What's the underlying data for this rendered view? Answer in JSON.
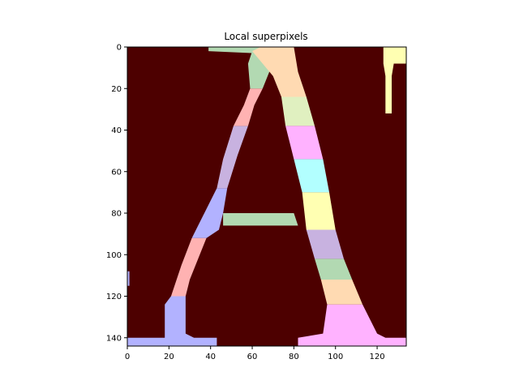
{
  "chart_data": {
    "type": "heatmap",
    "title": "Local superpixels",
    "xlabel": "",
    "ylabel": "",
    "xlim": [
      0,
      134
    ],
    "ylim": [
      144,
      0
    ],
    "xticks": [
      0,
      20,
      40,
      60,
      80,
      100,
      120
    ],
    "yticks": [
      0,
      20,
      40,
      60,
      80,
      100,
      120,
      140
    ],
    "grid": false,
    "background_color": "#4d0000",
    "segments": [
      {
        "color": "#b2b2ff",
        "polygon": [
          [
            0,
            140
          ],
          [
            18,
            140
          ],
          [
            18,
            124
          ],
          [
            21,
            120
          ],
          [
            28,
            120
          ],
          [
            28,
            138
          ],
          [
            32,
            140
          ],
          [
            43,
            140
          ],
          [
            43,
            144
          ],
          [
            0,
            144
          ]
        ]
      },
      {
        "color": "#ffb2b2",
        "polygon": [
          [
            21,
            120
          ],
          [
            28,
            120
          ],
          [
            30,
            112
          ],
          [
            38,
            92
          ],
          [
            31,
            92
          ],
          [
            26,
            105
          ]
        ]
      },
      {
        "color": "#b2b2ff",
        "polygon": [
          [
            38,
            92
          ],
          [
            31,
            92
          ],
          [
            36,
            82
          ],
          [
            43,
            68
          ],
          [
            48,
            68
          ],
          [
            46,
            80
          ],
          [
            44,
            88
          ]
        ]
      },
      {
        "color": "#b2d9b2",
        "polygon": [
          [
            46,
            80
          ],
          [
            60,
            80
          ],
          [
            80,
            80
          ],
          [
            82,
            86
          ],
          [
            62,
            86
          ],
          [
            46,
            86
          ]
        ]
      },
      {
        "color": "#c8b2e0",
        "polygon": [
          [
            43,
            68
          ],
          [
            48,
            68
          ],
          [
            53,
            52
          ],
          [
            58,
            38
          ],
          [
            51,
            38
          ],
          [
            46,
            54
          ]
        ]
      },
      {
        "color": "#ffb2b2",
        "polygon": [
          [
            51,
            38
          ],
          [
            58,
            38
          ],
          [
            61,
            28
          ],
          [
            65,
            20
          ],
          [
            59,
            20
          ],
          [
            56,
            28
          ]
        ]
      },
      {
        "color": "#b2d9b2",
        "polygon": [
          [
            59,
            20
          ],
          [
            65,
            20
          ],
          [
            69,
            10
          ],
          [
            74,
            2
          ],
          [
            72,
            0
          ],
          [
            64,
            0
          ],
          [
            60,
            2
          ],
          [
            58,
            8
          ]
        ]
      },
      {
        "color": "#b2d9b2",
        "polygon": [
          [
            39,
            0
          ],
          [
            72,
            0
          ],
          [
            74,
            2
          ],
          [
            62,
            3
          ],
          [
            39,
            2
          ]
        ]
      },
      {
        "color": "#ffdab2",
        "polygon": [
          [
            60,
            2
          ],
          [
            64,
            0
          ],
          [
            80,
            0
          ],
          [
            82,
            12
          ],
          [
            86,
            24
          ],
          [
            74,
            24
          ],
          [
            70,
            14
          ]
        ]
      },
      {
        "color": "#e0f0c0",
        "polygon": [
          [
            74,
            24
          ],
          [
            86,
            24
          ],
          [
            90,
            38
          ],
          [
            76,
            38
          ]
        ]
      },
      {
        "color": "#ffb2ff",
        "polygon": [
          [
            76,
            38
          ],
          [
            90,
            38
          ],
          [
            94,
            54
          ],
          [
            80,
            54
          ]
        ]
      },
      {
        "color": "#b2ffff",
        "polygon": [
          [
            80,
            54
          ],
          [
            94,
            54
          ],
          [
            97,
            70
          ],
          [
            84,
            70
          ]
        ]
      },
      {
        "color": "#ffffb2",
        "polygon": [
          [
            84,
            70
          ],
          [
            97,
            70
          ],
          [
            100,
            88
          ],
          [
            86,
            88
          ]
        ]
      },
      {
        "color": "#c8b2e0",
        "polygon": [
          [
            86,
            88
          ],
          [
            100,
            88
          ],
          [
            104,
            102
          ],
          [
            90,
            102
          ]
        ]
      },
      {
        "color": "#b2d9b2",
        "polygon": [
          [
            90,
            102
          ],
          [
            104,
            102
          ],
          [
            108,
            112
          ],
          [
            93,
            112
          ]
        ]
      },
      {
        "color": "#ffdab2",
        "polygon": [
          [
            93,
            112
          ],
          [
            108,
            112
          ],
          [
            113,
            124
          ],
          [
            96,
            124
          ]
        ]
      },
      {
        "color": "#ffb2ff",
        "polygon": [
          [
            96,
            124
          ],
          [
            113,
            124
          ],
          [
            116,
            130
          ],
          [
            120,
            138
          ],
          [
            124,
            140
          ],
          [
            134,
            140
          ],
          [
            134,
            144
          ],
          [
            82,
            144
          ],
          [
            82,
            140
          ],
          [
            94,
            138
          ]
        ]
      },
      {
        "color": "#ffffb2",
        "polygon": [
          [
            123,
            0
          ],
          [
            134,
            0
          ],
          [
            134,
            8
          ],
          [
            128,
            8
          ],
          [
            127,
            14
          ],
          [
            127,
            32
          ],
          [
            124,
            32
          ],
          [
            124,
            14
          ],
          [
            123,
            8
          ]
        ]
      },
      {
        "color": "#b2b2ff",
        "polygon": [
          [
            0,
            108
          ],
          [
            1,
            108
          ],
          [
            1,
            115
          ],
          [
            0,
            115
          ]
        ]
      }
    ]
  }
}
